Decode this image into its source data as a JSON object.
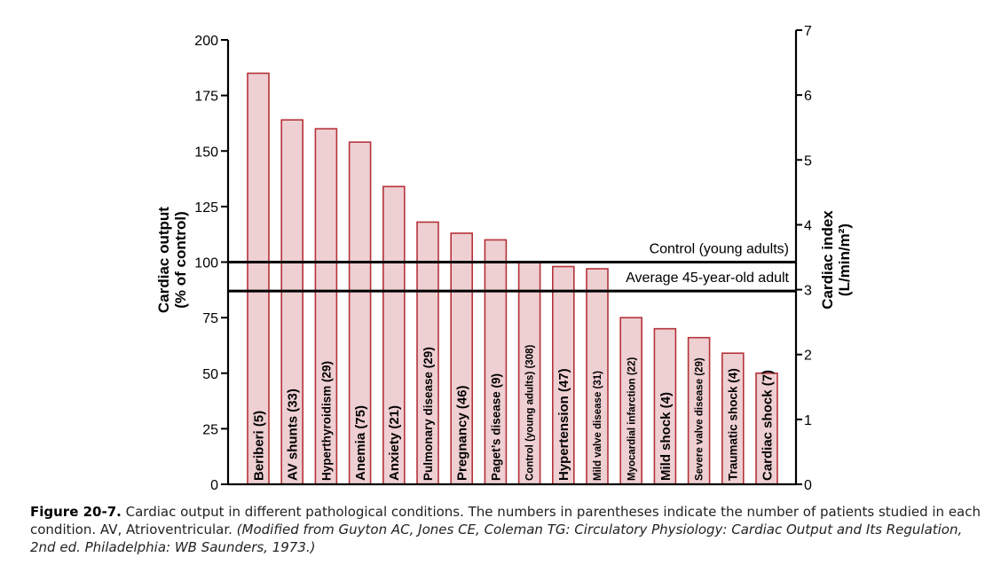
{
  "chart_data": {
    "type": "bar",
    "categories": [
      "Beriberi (5)",
      "AV shunts (33)",
      "Hyperthyroidism (29)",
      "Anemia (75)",
      "Anxiety (21)",
      "Pulmonary disease (29)",
      "Pregnancy (46)",
      "Paget’s disease (9)",
      "Control (young adults) (308)",
      "Hypertension (47)",
      "Mild valve disease (31)",
      "Myocardial infarction (22)",
      "Mild shock (4)",
      "Severe valve disease (29)",
      "Traumatic shock (4)",
      "Cardiac shock (7)"
    ],
    "values": [
      185,
      164,
      160,
      154,
      134,
      118,
      113,
      110,
      100,
      98,
      97,
      75,
      70,
      66,
      59,
      50
    ],
    "ylabel_left": [
      "Cardiac output",
      "(% of control)"
    ],
    "ylabel_right": [
      "Cardiac index",
      "(L/min/m²)"
    ],
    "ylim_left": [
      0,
      200
    ],
    "ylim_right": [
      0,
      7
    ],
    "yticks_left": [
      "0",
      "25",
      "50",
      "75",
      "100",
      "125",
      "150",
      "175",
      "200"
    ],
    "yticks_right": [
      "0",
      "1",
      "2",
      "3",
      "4",
      "5",
      "6",
      "7"
    ],
    "reference_lines": [
      {
        "label": "Control (young adults)",
        "value_left": 100
      },
      {
        "label": "Average 45-year-old adult",
        "value_left": 87
      }
    ],
    "grid": false,
    "colors": {
      "bar_fill": "#eecfd2",
      "bar_stroke": "#b5323a"
    }
  },
  "caption": {
    "label": "Figure 20-7.",
    "text": "Cardiac output in different pathological conditions. The numbers in parentheses indicate the number of patients studied in each condition. AV, Atrioventricular.",
    "credit": "(Modified from Guyton AC, Jones CE, Coleman TG: Circulatory Physiology: Cardiac Output and Its Regulation, 2nd ed. Philadelphia: WB Saunders, 1973.)"
  }
}
